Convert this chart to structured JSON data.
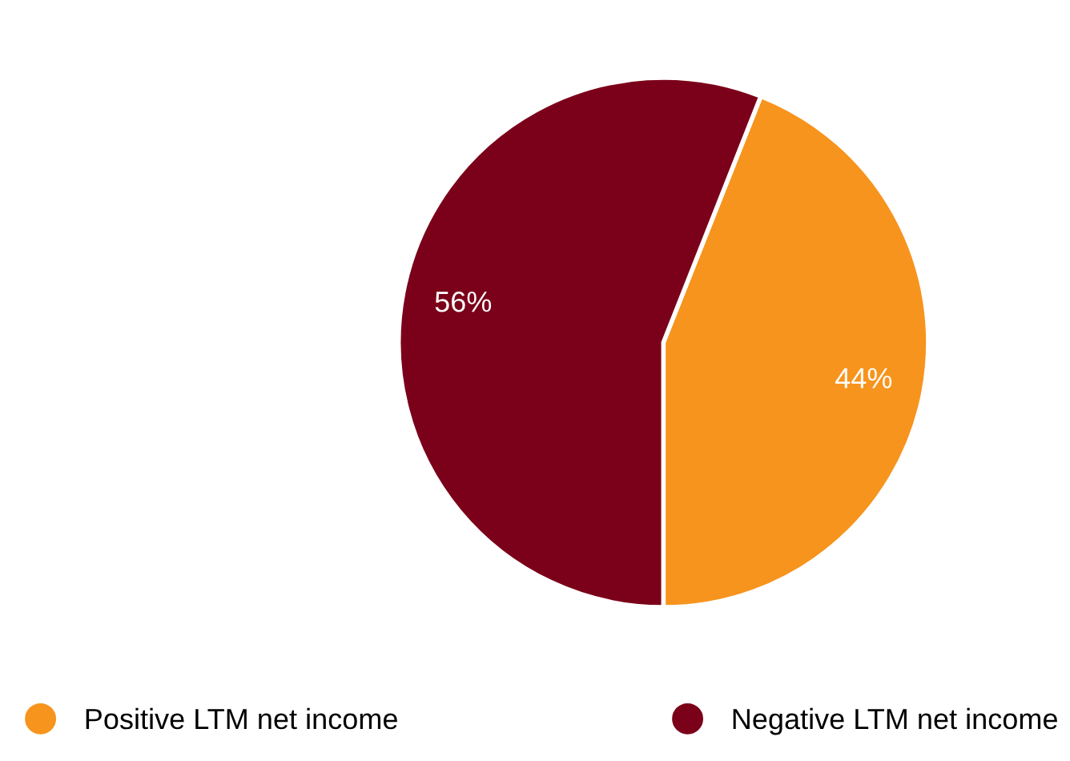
{
  "chart_data": {
    "type": "pie",
    "categories": [
      "Positive LTM net income",
      "Negative LTM net income"
    ],
    "values": [
      44,
      56
    ],
    "colors": [
      "#f7941d",
      "#7b0019"
    ],
    "value_labels": [
      "44%",
      "56%"
    ],
    "legend": "bottom"
  }
}
